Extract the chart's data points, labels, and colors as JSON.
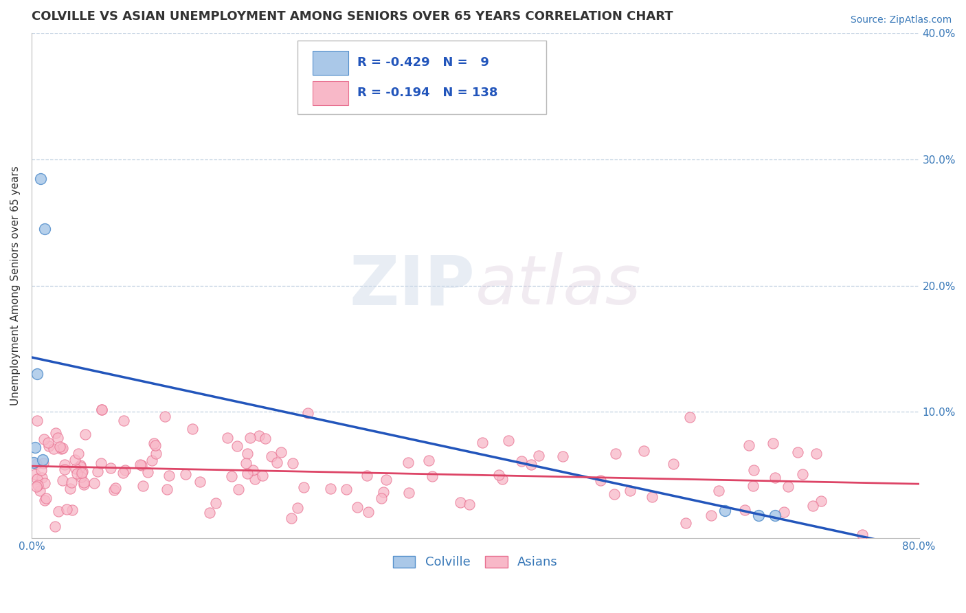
{
  "title": "COLVILLE VS ASIAN UNEMPLOYMENT AMONG SENIORS OVER 65 YEARS CORRELATION CHART",
  "source": "Source: ZipAtlas.com",
  "ylabel": "Unemployment Among Seniors over 65 years",
  "xlim": [
    0,
    0.8
  ],
  "ylim": [
    0,
    0.4
  ],
  "xticks": [
    0.0,
    0.1,
    0.2,
    0.3,
    0.4,
    0.5,
    0.6,
    0.7,
    0.8
  ],
  "xticklabels": [
    "0.0%",
    "",
    "",
    "",
    "",
    "",
    "",
    "",
    "80.0%"
  ],
  "yticks_right": [
    0.1,
    0.2,
    0.3,
    0.4
  ],
  "yticklabels_right": [
    "10.0%",
    "20.0%",
    "30.0%",
    "40.0%"
  ],
  "colville_color": "#aac8e8",
  "colville_edge": "#5590cc",
  "asian_color": "#f8b8c8",
  "asian_edge": "#e87090",
  "blue_line_color": "#2255bb",
  "pink_line_color": "#dd4466",
  "R_colville": -0.429,
  "N_colville": 9,
  "R_asian": -0.194,
  "N_asian": 138,
  "legend_label_colville": "Colville",
  "legend_label_asian": "Asians",
  "watermark_zip": "ZIP",
  "watermark_atlas": "atlas",
  "background_color": "#ffffff",
  "grid_color": "#c0d0e0",
  "colville_points_x": [
    0.008,
    0.012,
    0.005,
    0.003,
    0.002,
    0.01,
    0.625,
    0.655,
    0.67
  ],
  "colville_points_y": [
    0.285,
    0.245,
    0.13,
    0.072,
    0.06,
    0.062,
    0.022,
    0.018,
    0.018
  ],
  "asian_seed": 77,
  "title_fontsize": 13,
  "axis_label_fontsize": 11,
  "tick_fontsize": 11,
  "legend_fontsize": 13,
  "source_fontsize": 10,
  "marker_size": 120
}
